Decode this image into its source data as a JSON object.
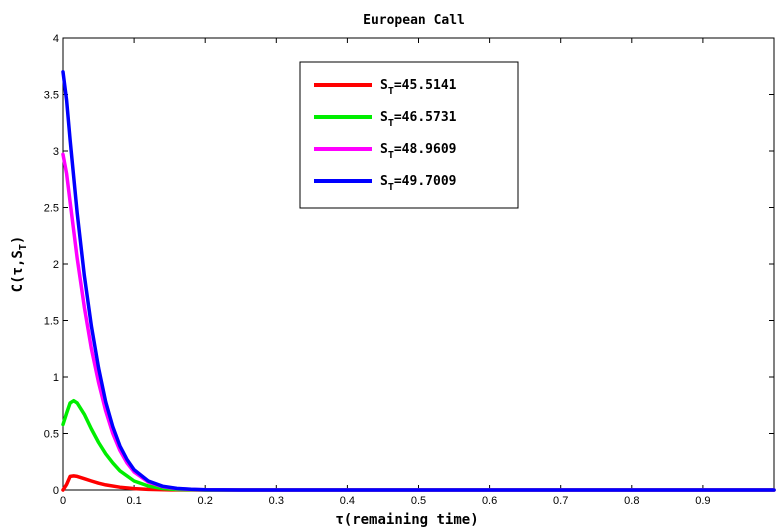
{
  "chart_data": {
    "type": "line",
    "title": "European Call",
    "xlabel": "τ(remaining time)",
    "ylabel": "C(τ,S_T)",
    "xlim": [
      0,
      1
    ],
    "ylim": [
      0,
      4
    ],
    "xticks": [
      0,
      0.1,
      0.2,
      0.3,
      0.4,
      0.5,
      0.6,
      0.7,
      0.8,
      0.9
    ],
    "xtick_labels": [
      "0",
      "0.1",
      "0.2",
      "0.3",
      "0.4",
      "0.5",
      "0.6",
      "0.7",
      "0.8",
      "0.9"
    ],
    "yticks": [
      0,
      0.5,
      1,
      1.5,
      2,
      2.5,
      3,
      3.5,
      4
    ],
    "ytick_labels": [
      "0",
      "0.5",
      "1",
      "1.5",
      "2",
      "2.5",
      "3",
      "3.5",
      "4"
    ],
    "legend_position": "top-center",
    "grid": false,
    "series": [
      {
        "name": "S_T=45.5141",
        "color": "#ff0000",
        "x": [
          0,
          0.005,
          0.01,
          0.015,
          0.02,
          0.03,
          0.04,
          0.05,
          0.06,
          0.08,
          0.1,
          0.12,
          0.15,
          0.2,
          0.3,
          0.5,
          0.7,
          0.9,
          1.0
        ],
        "y": [
          0.0,
          0.05,
          0.12,
          0.125,
          0.12,
          0.1,
          0.08,
          0.06,
          0.045,
          0.025,
          0.012,
          0.005,
          0.001,
          0,
          0,
          0,
          0,
          0,
          0
        ]
      },
      {
        "name": "S_T=46.5731",
        "color": "#00ee00",
        "x": [
          0,
          0.005,
          0.01,
          0.015,
          0.02,
          0.03,
          0.04,
          0.05,
          0.06,
          0.07,
          0.08,
          0.1,
          0.12,
          0.14,
          0.16,
          0.2,
          0.3,
          0.5,
          0.7,
          0.9,
          1.0
        ],
        "y": [
          0.58,
          0.68,
          0.77,
          0.79,
          0.77,
          0.67,
          0.54,
          0.42,
          0.32,
          0.24,
          0.17,
          0.08,
          0.035,
          0.013,
          0.004,
          0,
          0,
          0,
          0,
          0,
          0
        ]
      },
      {
        "name": "S_T=48.9609",
        "color": "#ff00ff",
        "x": [
          0,
          0.005,
          0.01,
          0.02,
          0.03,
          0.04,
          0.05,
          0.06,
          0.07,
          0.08,
          0.09,
          0.1,
          0.12,
          0.14,
          0.16,
          0.18,
          0.2,
          0.25,
          0.3,
          0.5,
          0.7,
          0.9,
          1.0
        ],
        "y": [
          2.97,
          2.8,
          2.55,
          2.05,
          1.62,
          1.25,
          0.95,
          0.7,
          0.5,
          0.35,
          0.24,
          0.16,
          0.07,
          0.03,
          0.012,
          0.005,
          0.002,
          0,
          0,
          0,
          0,
          0,
          0
        ]
      },
      {
        "name": "S_T=49.7009",
        "color": "#0000ff",
        "x": [
          0,
          0.005,
          0.01,
          0.02,
          0.03,
          0.04,
          0.05,
          0.06,
          0.07,
          0.08,
          0.09,
          0.1,
          0.12,
          0.14,
          0.16,
          0.18,
          0.2,
          0.25,
          0.3,
          0.5,
          0.7,
          0.9,
          1.0
        ],
        "y": [
          3.7,
          3.45,
          3.1,
          2.45,
          1.9,
          1.45,
          1.08,
          0.78,
          0.56,
          0.39,
          0.27,
          0.18,
          0.08,
          0.034,
          0.014,
          0.006,
          0.002,
          0,
          0,
          0,
          0,
          0,
          0
        ]
      }
    ]
  }
}
